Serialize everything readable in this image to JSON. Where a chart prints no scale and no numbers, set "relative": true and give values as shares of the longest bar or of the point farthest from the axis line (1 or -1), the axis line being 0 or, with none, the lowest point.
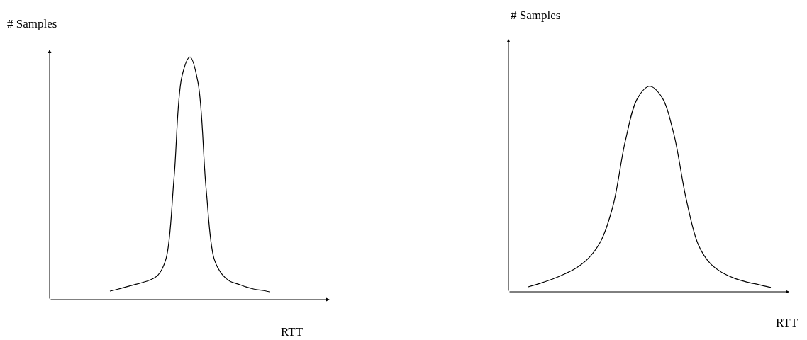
{
  "chart_data": [
    {
      "type": "line",
      "relative": true,
      "xlabel": "RTT",
      "ylabel": "# Samples",
      "tick_labels": false,
      "marker": "none",
      "line_style": "solid",
      "categories": [
        null,
        null,
        null,
        null,
        null,
        null,
        null,
        null,
        null,
        null,
        null,
        null,
        null,
        null,
        null,
        null,
        null,
        null,
        null,
        null,
        null
      ],
      "series": [
        {
          "color": "#000000",
          "values": [
            0.035,
            0.043,
            0.052,
            0.061,
            0.07,
            0.081,
            0.101,
            0.168,
            0.501,
            0.922,
            1,
            0.893,
            0.458,
            0.168,
            0.104,
            0.075,
            0.064,
            0.052,
            0.043,
            0.038,
            0.032
          ]
        }
      ]
    },
    {
      "type": "line",
      "relative": true,
      "xlabel": "RTT",
      "ylabel": "# Samples",
      "tick_labels": false,
      "marker": "none",
      "line_style": "solid",
      "categories": [
        null,
        null,
        null,
        null,
        null,
        null,
        null,
        null,
        null,
        null,
        null,
        null,
        null,
        null,
        null,
        null,
        null,
        null,
        null,
        null,
        null
      ],
      "series": [
        {
          "color": "#000000",
          "values": [
            0.024,
            0.042,
            0.062,
            0.087,
            0.118,
            0.166,
            0.249,
            0.422,
            0.734,
            0.941,
            1,
            0.948,
            0.768,
            0.457,
            0.232,
            0.138,
            0.093,
            0.066,
            0.048,
            0.035,
            0.021
          ]
        }
      ]
    }
  ]
}
